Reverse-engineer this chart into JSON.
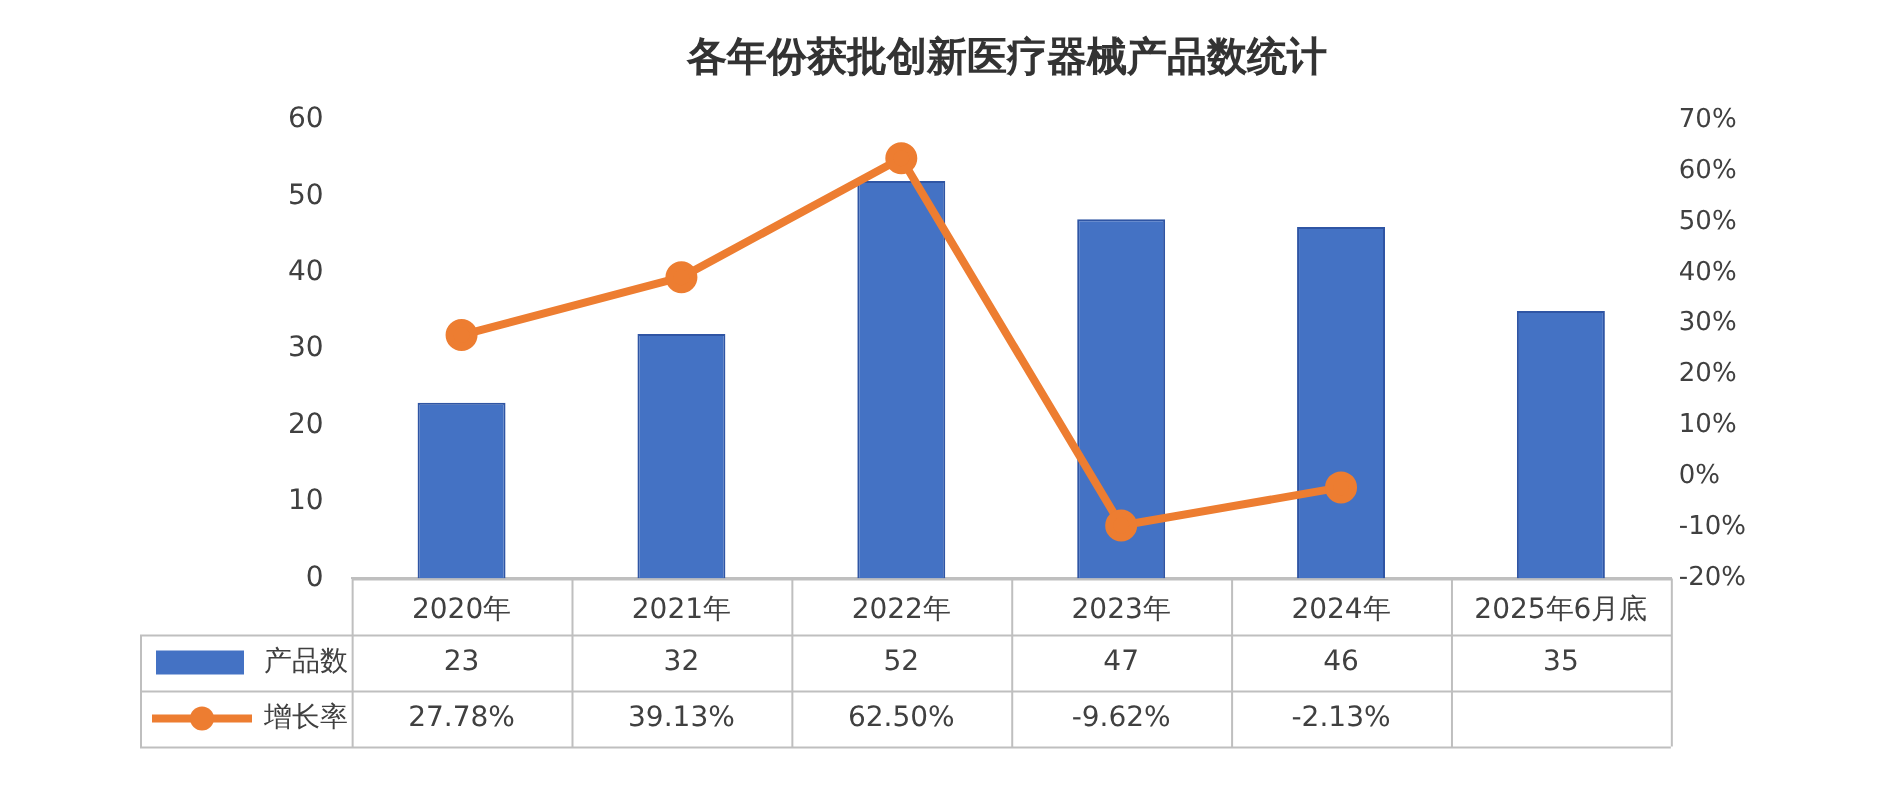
{
  "chart_data": {
    "type": "bar",
    "title": "各年份获批创新医疗器械产品数统计",
    "categories": [
      "2020年",
      "2021年",
      "2022年",
      "2023年",
      "2024年",
      "2025年6月底"
    ],
    "series": [
      {
        "name": "产品数",
        "color": "#4472c4",
        "values": [
          23,
          32,
          52,
          47,
          46,
          35
        ],
        "value_labels": [
          "23",
          "32",
          "52",
          "47",
          "46",
          "35"
        ]
      },
      {
        "name": "增长率",
        "type": "line",
        "axis": "y2",
        "color": "#ed7d31",
        "values": [
          27.78,
          39.13,
          62.5,
          -9.62,
          -2.13,
          null
        ],
        "value_labels": [
          "27.78%",
          "39.13%",
          "62.50%",
          "-9.62%",
          "-2.13%",
          null
        ]
      }
    ],
    "ylim": [
      0,
      60
    ],
    "yticks": [
      0,
      10,
      20,
      30,
      40,
      50,
      60
    ],
    "y2lim": [
      -20,
      70
    ],
    "y2ticks": [
      {
        "value": -20,
        "label": "-20%"
      },
      {
        "value": -10,
        "label": "-10%"
      },
      {
        "value": 0,
        "label": "0%"
      },
      {
        "value": 10,
        "label": "10%"
      },
      {
        "value": 20,
        "label": "20%"
      },
      {
        "value": 30,
        "label": "30%"
      },
      {
        "value": 40,
        "label": "40%"
      },
      {
        "value": 50,
        "label": "50%"
      },
      {
        "value": 60,
        "label": "60%"
      },
      {
        "value": 70,
        "label": "70%"
      }
    ],
    "grid": false,
    "legend": "bottom",
    "marker": "circle",
    "line_style": "solid"
  }
}
